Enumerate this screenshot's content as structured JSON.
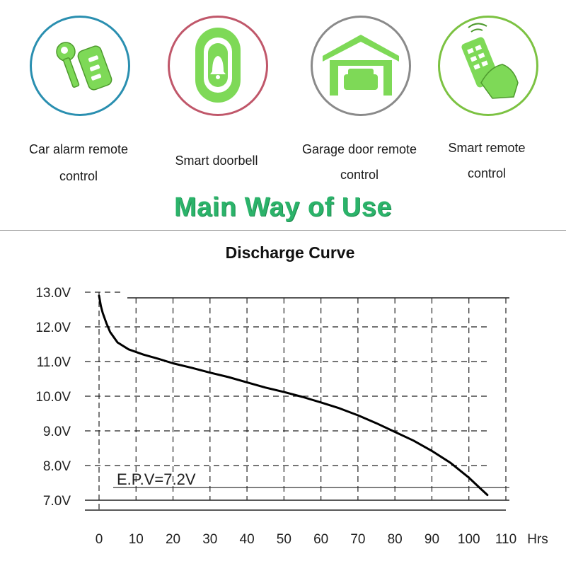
{
  "uses": {
    "items": [
      {
        "line1": "Car alarm remote",
        "line2": "control",
        "icon": "car-key-remote-icon",
        "ring": "#2a8fb0"
      },
      {
        "line1": "Smart doorbell",
        "line2": "",
        "icon": "doorbell-icon",
        "ring": "#c0576a"
      },
      {
        "line1": "Garage door remote",
        "line2": "control",
        "icon": "garage-icon",
        "ring": "#8a8a8a"
      },
      {
        "line1": "Smart remote",
        "line2": "control",
        "icon": "hand-remote-icon",
        "ring": "#7cc242"
      }
    ],
    "icon_color": "#7ed957"
  },
  "title": "Main Way of Use",
  "chart_data": {
    "type": "line",
    "title": "Discharge Curve",
    "xlabel": "Hrs",
    "ylabel": "",
    "x_ticks": [
      0,
      10,
      20,
      30,
      40,
      50,
      60,
      70,
      80,
      90,
      100,
      110
    ],
    "y_ticks": [
      "7.0V",
      "8.0V",
      "9.0V",
      "10.0V",
      "11.0V",
      "12.0V",
      "13.0V"
    ],
    "xlim": [
      0,
      110
    ],
    "ylim": [
      7.0,
      13.0
    ],
    "grid": true,
    "annotation": "E.P.V=7.2V",
    "epv_line": 7.2,
    "series": [
      {
        "x": [
          0,
          0.5,
          1,
          2,
          3,
          5,
          8,
          12,
          16,
          20,
          25,
          30,
          35,
          40,
          45,
          50,
          55,
          60,
          65,
          70,
          75,
          80,
          85,
          90,
          95,
          100,
          103,
          105
        ],
        "y": [
          12.9,
          12.6,
          12.4,
          12.1,
          11.85,
          11.55,
          11.35,
          11.2,
          11.08,
          10.95,
          10.82,
          10.68,
          10.55,
          10.4,
          10.25,
          10.12,
          9.98,
          9.82,
          9.65,
          9.45,
          9.22,
          8.97,
          8.72,
          8.42,
          8.08,
          7.65,
          7.35,
          7.15
        ]
      }
    ]
  }
}
